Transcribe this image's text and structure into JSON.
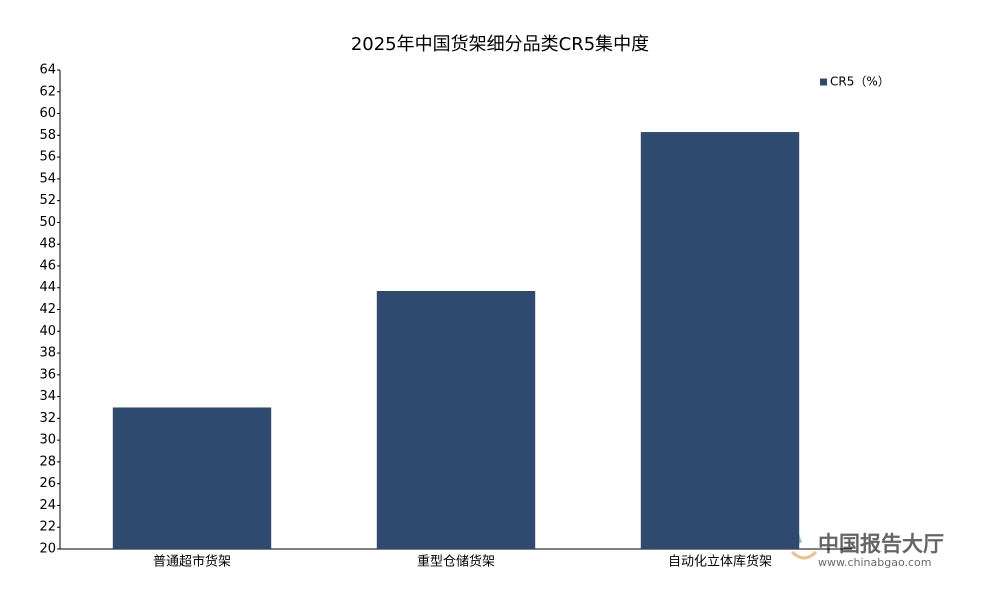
{
  "chart_data": {
    "type": "bar",
    "title": "2025年中国货架细分品类CR5集中度",
    "categories": [
      "普通超市货架",
      "重型仓储货架",
      "自动化立体库货架"
    ],
    "series": [
      {
        "name": "CR5（%）",
        "color": "#2e4a6f",
        "values": [
          33.0,
          43.7,
          58.3
        ]
      }
    ],
    "ylim": [
      20,
      64
    ],
    "yticks": [
      20,
      22,
      24,
      26,
      28,
      30,
      32,
      34,
      36,
      38,
      40,
      42,
      44,
      46,
      48,
      50,
      52,
      54,
      56,
      58,
      60,
      62,
      64
    ],
    "grid": false,
    "legend": "top-right"
  },
  "watermark": {
    "brand": "中国报告大厅",
    "url": "www.chinabgao.com"
  }
}
